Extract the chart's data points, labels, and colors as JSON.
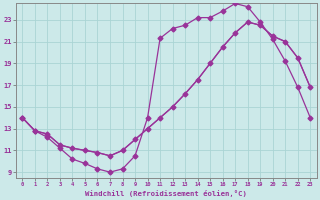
{
  "background_color": "#cce9e9",
  "grid_color": "#aad4d4",
  "line_color": "#993399",
  "markersize": 2.5,
  "linewidth": 0.9,
  "xlabel": "Windchill (Refroidissement éolien,°C)",
  "xlim": [
    -0.5,
    23.5
  ],
  "ylim": [
    8.5,
    24.5
  ],
  "yticks": [
    9,
    11,
    13,
    15,
    17,
    19,
    21,
    23
  ],
  "xticks": [
    0,
    1,
    2,
    3,
    4,
    5,
    6,
    7,
    8,
    9,
    10,
    11,
    12,
    13,
    14,
    15,
    16,
    17,
    18,
    19,
    20,
    21,
    22,
    23
  ],
  "line1_x": [
    0,
    1,
    2,
    3,
    4,
    5,
    6,
    7,
    8,
    9,
    10,
    11,
    12,
    13,
    14,
    15,
    16,
    17,
    18,
    19,
    20,
    21,
    22,
    23
  ],
  "line1_y": [
    14.0,
    12.8,
    12.2,
    11.2,
    10.2,
    9.8,
    9.3,
    9.0,
    9.3,
    10.5,
    14.0,
    21.3,
    22.2,
    22.5,
    23.2,
    23.2,
    23.8,
    24.5,
    24.2,
    22.8,
    21.2,
    19.2,
    16.8,
    14.0
  ],
  "line1_marker": true,
  "line2_x": [
    0,
    1,
    2,
    3,
    4,
    5,
    6,
    7,
    8,
    9,
    10,
    11,
    12,
    13,
    14,
    15,
    16,
    17,
    18,
    19,
    20,
    21,
    22,
    23
  ],
  "line2_y": [
    14.0,
    12.8,
    12.5,
    11.5,
    11.2,
    11.0,
    10.8,
    10.5,
    11.0,
    12.0,
    13.0,
    14.0,
    15.0,
    16.2,
    17.5,
    19.0,
    20.5,
    21.8,
    22.8,
    22.5,
    21.5,
    21.0,
    19.5,
    16.8
  ],
  "line2_marker": false,
  "line3_x": [
    0,
    1,
    2,
    3,
    4,
    5,
    6,
    7,
    8,
    9,
    10,
    11,
    12,
    13,
    14,
    15,
    16,
    17,
    18,
    19,
    20,
    21,
    22,
    23
  ],
  "line3_y": [
    14.0,
    12.8,
    12.5,
    11.5,
    11.2,
    11.0,
    10.8,
    10.5,
    11.0,
    12.0,
    13.0,
    14.0,
    15.0,
    16.2,
    17.5,
    19.0,
    20.5,
    21.8,
    22.8,
    22.5,
    21.5,
    21.0,
    19.5,
    16.8
  ],
  "line3_marker": true
}
